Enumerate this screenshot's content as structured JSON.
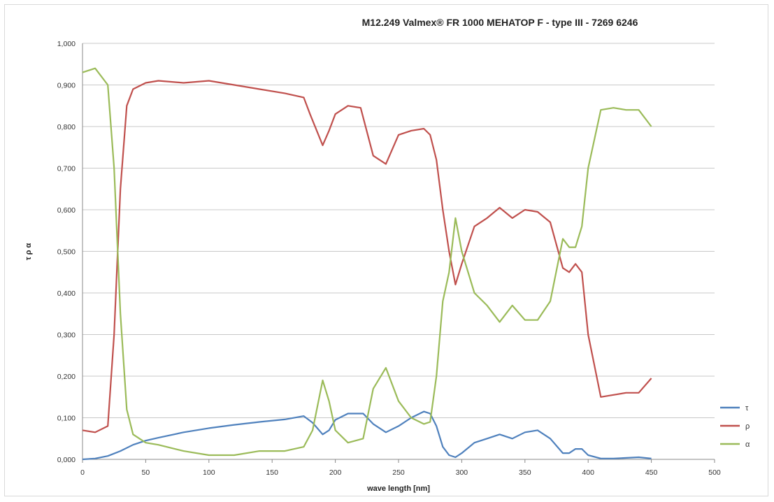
{
  "chart_data": {
    "type": "line",
    "title": "M12.249 Valmex® FR 1000 MEHATOP F - type III - 7269 6246",
    "xlabel": "wave length [nm]",
    "ylabel": "τ ρ α",
    "xlim": [
      0,
      500
    ],
    "ylim": [
      0,
      1.0
    ],
    "x_ticks": [
      "0",
      "50",
      "100",
      "150",
      "200",
      "250",
      "300",
      "350",
      "400",
      "450",
      "500"
    ],
    "y_ticks": [
      "0,000",
      "0,100",
      "0,200",
      "0,300",
      "0,400",
      "0,500",
      "0,600",
      "0,700",
      "0,800",
      "0,900",
      "1,000"
    ],
    "grid": "horizontal",
    "legend_position": "right",
    "series": [
      {
        "name": "τ",
        "color": "#4f81bd",
        "points": [
          [
            0,
            0
          ],
          [
            10,
            0.002
          ],
          [
            20,
            0.008
          ],
          [
            30,
            0.02
          ],
          [
            40,
            0.035
          ],
          [
            50,
            0.045
          ],
          [
            60,
            0.052
          ],
          [
            80,
            0.065
          ],
          [
            100,
            0.075
          ],
          [
            120,
            0.083
          ],
          [
            140,
            0.09
          ],
          [
            160,
            0.096
          ],
          [
            175,
            0.104
          ],
          [
            182,
            0.088
          ],
          [
            190,
            0.06
          ],
          [
            195,
            0.07
          ],
          [
            200,
            0.095
          ],
          [
            210,
            0.11
          ],
          [
            222,
            0.11
          ],
          [
            230,
            0.085
          ],
          [
            240,
            0.065
          ],
          [
            250,
            0.08
          ],
          [
            260,
            0.1
          ],
          [
            270,
            0.115
          ],
          [
            275,
            0.11
          ],
          [
            280,
            0.08
          ],
          [
            285,
            0.03
          ],
          [
            290,
            0.01
          ],
          [
            295,
            0.005
          ],
          [
            300,
            0.015
          ],
          [
            310,
            0.04
          ],
          [
            320,
            0.05
          ],
          [
            330,
            0.06
          ],
          [
            340,
            0.05
          ],
          [
            350,
            0.065
          ],
          [
            360,
            0.07
          ],
          [
            370,
            0.05
          ],
          [
            380,
            0.015
          ],
          [
            385,
            0.015
          ],
          [
            390,
            0.025
          ],
          [
            395,
            0.025
          ],
          [
            400,
            0.01
          ],
          [
            410,
            0.002
          ],
          [
            420,
            0.002
          ],
          [
            440,
            0.005
          ],
          [
            450,
            0.002
          ]
        ]
      },
      {
        "name": "ρ",
        "color": "#c0504d",
        "points": [
          [
            0,
            0.07
          ],
          [
            10,
            0.065
          ],
          [
            20,
            0.08
          ],
          [
            25,
            0.3
          ],
          [
            30,
            0.65
          ],
          [
            35,
            0.85
          ],
          [
            40,
            0.89
          ],
          [
            50,
            0.905
          ],
          [
            60,
            0.91
          ],
          [
            80,
            0.905
          ],
          [
            100,
            0.91
          ],
          [
            120,
            0.9
          ],
          [
            140,
            0.89
          ],
          [
            160,
            0.88
          ],
          [
            175,
            0.87
          ],
          [
            180,
            0.83
          ],
          [
            190,
            0.755
          ],
          [
            195,
            0.79
          ],
          [
            200,
            0.83
          ],
          [
            210,
            0.85
          ],
          [
            220,
            0.845
          ],
          [
            230,
            0.73
          ],
          [
            240,
            0.71
          ],
          [
            250,
            0.78
          ],
          [
            260,
            0.79
          ],
          [
            270,
            0.795
          ],
          [
            275,
            0.78
          ],
          [
            280,
            0.72
          ],
          [
            285,
            0.6
          ],
          [
            290,
            0.5
          ],
          [
            295,
            0.42
          ],
          [
            300,
            0.47
          ],
          [
            310,
            0.56
          ],
          [
            320,
            0.58
          ],
          [
            330,
            0.605
          ],
          [
            340,
            0.58
          ],
          [
            350,
            0.6
          ],
          [
            360,
            0.595
          ],
          [
            370,
            0.57
          ],
          [
            380,
            0.46
          ],
          [
            385,
            0.45
          ],
          [
            390,
            0.47
          ],
          [
            395,
            0.45
          ],
          [
            400,
            0.3
          ],
          [
            410,
            0.15
          ],
          [
            420,
            0.155
          ],
          [
            430,
            0.16
          ],
          [
            440,
            0.16
          ],
          [
            450,
            0.195
          ]
        ]
      },
      {
        "name": "α",
        "color": "#9bbb59",
        "points": [
          [
            0,
            0.93
          ],
          [
            10,
            0.94
          ],
          [
            20,
            0.9
          ],
          [
            25,
            0.7
          ],
          [
            30,
            0.35
          ],
          [
            35,
            0.12
          ],
          [
            40,
            0.06
          ],
          [
            50,
            0.04
          ],
          [
            60,
            0.035
          ],
          [
            80,
            0.02
          ],
          [
            100,
            0.01
          ],
          [
            120,
            0.01
          ],
          [
            140,
            0.02
          ],
          [
            160,
            0.02
          ],
          [
            175,
            0.03
          ],
          [
            182,
            0.07
          ],
          [
            190,
            0.19
          ],
          [
            195,
            0.14
          ],
          [
            200,
            0.07
          ],
          [
            210,
            0.04
          ],
          [
            222,
            0.05
          ],
          [
            230,
            0.17
          ],
          [
            240,
            0.22
          ],
          [
            250,
            0.14
          ],
          [
            260,
            0.1
          ],
          [
            270,
            0.085
          ],
          [
            275,
            0.09
          ],
          [
            280,
            0.2
          ],
          [
            285,
            0.38
          ],
          [
            290,
            0.45
          ],
          [
            295,
            0.58
          ],
          [
            300,
            0.5
          ],
          [
            310,
            0.4
          ],
          [
            320,
            0.37
          ],
          [
            330,
            0.33
          ],
          [
            340,
            0.37
          ],
          [
            350,
            0.335
          ],
          [
            360,
            0.335
          ],
          [
            370,
            0.38
          ],
          [
            380,
            0.53
          ],
          [
            385,
            0.51
          ],
          [
            390,
            0.51
          ],
          [
            395,
            0.56
          ],
          [
            400,
            0.7
          ],
          [
            410,
            0.84
          ],
          [
            420,
            0.845
          ],
          [
            430,
            0.84
          ],
          [
            440,
            0.84
          ],
          [
            450,
            0.8
          ]
        ]
      }
    ]
  }
}
